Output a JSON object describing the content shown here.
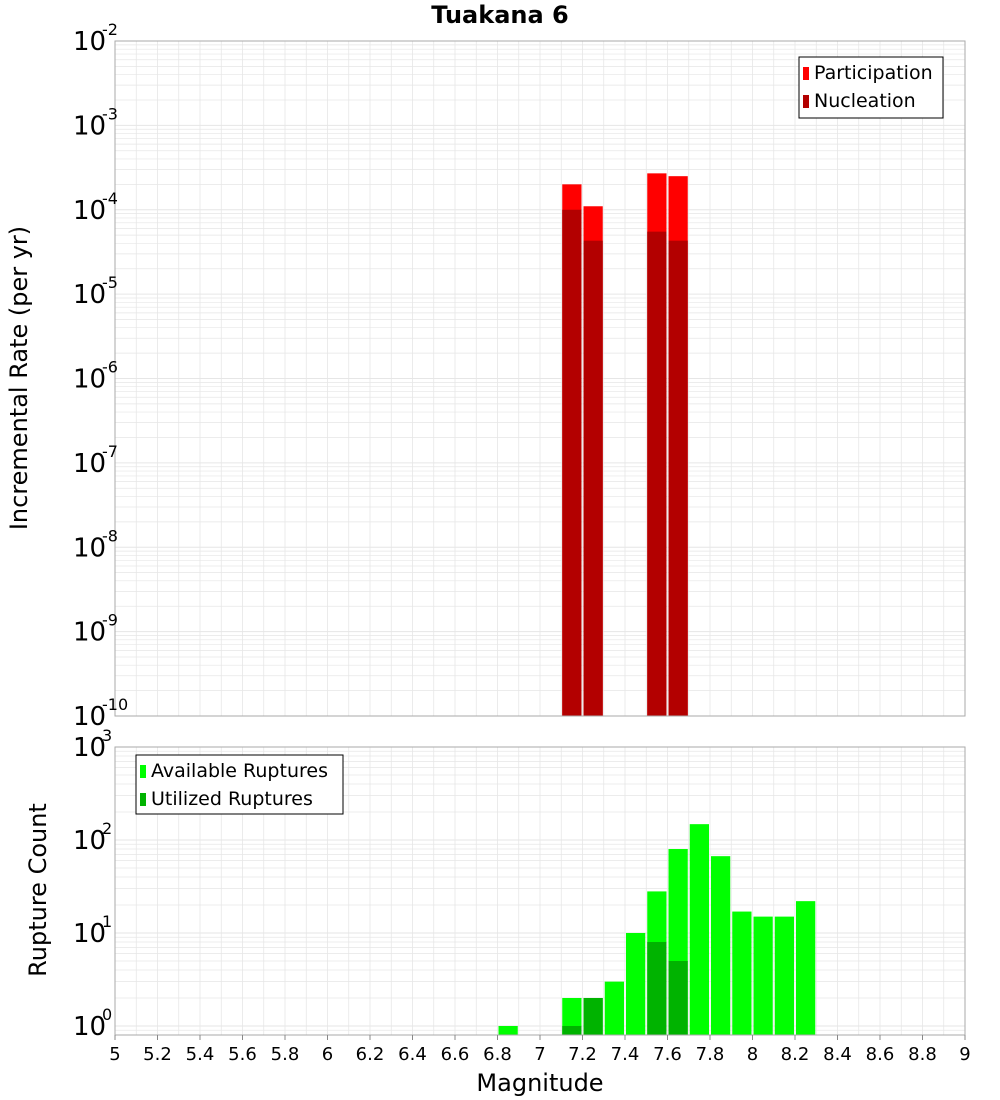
{
  "title": "Tuakana 6",
  "xlabel": "Magnitude",
  "x_ticks": [
    "5",
    "5.2",
    "5.4",
    "5.6",
    "5.8",
    "6",
    "6.2",
    "6.4",
    "6.6",
    "6.8",
    "7",
    "7.2",
    "7.4",
    "7.6",
    "7.8",
    "8",
    "8.2",
    "8.4",
    "8.6",
    "8.8",
    "9"
  ],
  "colors": {
    "participation": "#ff0000",
    "nucleation": "#b30000",
    "available": "#00ff00",
    "utilized": "#00b300",
    "grid": "#e6e6e6",
    "frame": "#aaaaaa"
  },
  "chart_data": [
    {
      "type": "bar",
      "yscale": "log",
      "ylabel": "Incremental Rate (per yr)",
      "xlim": [
        5,
        9
      ],
      "ylim": [
        1e-10,
        0.01
      ],
      "bin_width": 0.1,
      "y_ticks": [
        {
          "base": "10",
          "exp": "-2"
        },
        {
          "base": "10",
          "exp": "-3"
        },
        {
          "base": "10",
          "exp": "-4"
        },
        {
          "base": "10",
          "exp": "-5"
        },
        {
          "base": "10",
          "exp": "-6"
        },
        {
          "base": "10",
          "exp": "-7"
        },
        {
          "base": "10",
          "exp": "-8"
        },
        {
          "base": "10",
          "exp": "-9"
        },
        {
          "base": "10",
          "exp": "-10"
        }
      ],
      "legend_position": "top-right",
      "series": [
        {
          "name": "Participation",
          "x": [
            7.15,
            7.25,
            7.55,
            7.65
          ],
          "values": [
            0.0002,
            0.00011,
            0.00027,
            0.00025
          ]
        },
        {
          "name": "Nucleation",
          "x": [
            7.15,
            7.25,
            7.55,
            7.65
          ],
          "values": [
            0.0001,
            4.3e-05,
            5.5e-05,
            4.3e-05
          ]
        }
      ]
    },
    {
      "type": "bar",
      "yscale": "log",
      "ylabel": "Rupture Count",
      "xlim": [
        5,
        9
      ],
      "ylim": [
        0.8,
        1000
      ],
      "bin_width": 0.1,
      "y_ticks": [
        {
          "base": "10",
          "exp": "3"
        },
        {
          "base": "10",
          "exp": "2"
        },
        {
          "base": "10",
          "exp": "1"
        },
        {
          "base": "10",
          "exp": "0"
        }
      ],
      "legend_position": "top-left",
      "series": [
        {
          "name": "Available Ruptures",
          "x": [
            6.85,
            7.15,
            7.25,
            7.35,
            7.45,
            7.55,
            7.65,
            7.75,
            7.85,
            7.95,
            8.05,
            8.15,
            8.25
          ],
          "values": [
            1,
            2,
            2,
            3,
            10,
            28,
            80,
            148,
            67,
            17,
            15,
            15,
            22
          ]
        },
        {
          "name": "Utilized Ruptures",
          "x": [
            7.15,
            7.25,
            7.55,
            7.65
          ],
          "values": [
            1,
            2,
            8,
            5
          ]
        }
      ]
    }
  ]
}
